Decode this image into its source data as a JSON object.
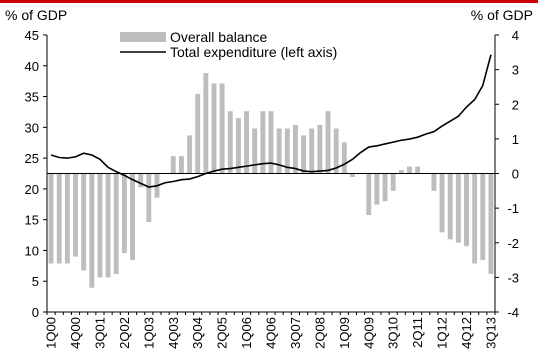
{
  "colors": {
    "accent_rule": "#cc0000",
    "bars": "#bdbdbd",
    "line": "#000000"
  },
  "chart_data": {
    "type": "bar+line",
    "title": "",
    "left_axis": {
      "label": "% of GDP",
      "range": [
        0,
        45
      ],
      "ticks": [
        0,
        5,
        10,
        15,
        20,
        25,
        30,
        35,
        40,
        45
      ]
    },
    "right_axis": {
      "label": "% of GDP",
      "range": [
        -4,
        4
      ],
      "ticks": [
        -4,
        -3,
        -2,
        -1,
        0,
        1,
        2,
        3,
        4
      ]
    },
    "x_tick_labels": [
      "1Q00",
      "4Q00",
      "3Q01",
      "2Q02",
      "1Q03",
      "4Q03",
      "3Q04",
      "2Q05",
      "1Q06",
      "4Q06",
      "3Q07",
      "2Q08",
      "1Q09",
      "4Q09",
      "3Q10",
      "2Q11",
      "1Q12",
      "4Q12",
      "3Q13"
    ],
    "quarters": [
      "1Q00",
      "2Q00",
      "3Q00",
      "4Q00",
      "1Q01",
      "2Q01",
      "3Q01",
      "4Q01",
      "1Q02",
      "2Q02",
      "3Q02",
      "4Q02",
      "1Q03",
      "2Q03",
      "3Q03",
      "4Q03",
      "1Q04",
      "2Q04",
      "3Q04",
      "4Q04",
      "1Q05",
      "2Q05",
      "3Q05",
      "4Q05",
      "1Q06",
      "2Q06",
      "3Q06",
      "4Q06",
      "1Q07",
      "2Q07",
      "3Q07",
      "4Q07",
      "1Q08",
      "2Q08",
      "3Q08",
      "4Q08",
      "1Q09",
      "2Q09",
      "3Q09",
      "4Q09",
      "1Q10",
      "2Q10",
      "3Q10",
      "4Q10",
      "1Q11",
      "2Q11",
      "3Q11",
      "4Q11",
      "1Q12",
      "2Q12",
      "3Q12",
      "4Q12",
      "1Q13",
      "2Q13",
      "3Q13"
    ],
    "series": [
      {
        "name": "Overall balance",
        "type": "bar",
        "axis": "right",
        "values": [
          -2.6,
          -2.6,
          -2.6,
          -2.4,
          -2.8,
          -3.3,
          -3.0,
          -3.0,
          -2.9,
          -2.3,
          -2.5,
          -0.4,
          -1.4,
          -0.7,
          0.0,
          0.5,
          0.5,
          1.1,
          2.3,
          2.9,
          2.6,
          2.6,
          1.8,
          1.6,
          1.8,
          1.3,
          1.8,
          1.8,
          1.3,
          1.3,
          1.4,
          1.1,
          1.3,
          1.4,
          1.8,
          1.3,
          0.9,
          -0.1,
          0.0,
          -1.2,
          -0.9,
          -0.8,
          -0.5,
          0.1,
          0.2,
          0.2,
          0.0,
          -0.5,
          -1.7,
          -1.9,
          -2.0,
          -2.1,
          -2.6,
          -2.5,
          -2.9
        ]
      },
      {
        "name": "Total expenditure (left axis)",
        "type": "line",
        "axis": "left",
        "values": [
          25.5,
          25.1,
          25.0,
          25.2,
          25.8,
          25.5,
          24.8,
          23.5,
          22.8,
          22.2,
          21.5,
          20.9,
          20.3,
          20.5,
          21.0,
          21.2,
          21.5,
          21.6,
          22.0,
          22.5,
          22.9,
          23.2,
          23.3,
          23.5,
          23.7,
          23.9,
          24.1,
          24.2,
          23.9,
          23.5,
          23.3,
          22.9,
          22.8,
          22.9,
          23.0,
          23.4,
          24.0,
          24.8,
          25.9,
          26.8,
          27.0,
          27.3,
          27.6,
          27.9,
          28.1,
          28.4,
          28.9,
          29.3,
          30.2,
          31.0,
          31.8,
          33.3,
          34.5,
          36.8,
          41.8
        ]
      }
    ],
    "legend": {
      "placement": "top-center",
      "items": [
        "Overall balance",
        "Total expenditure (left axis)"
      ]
    },
    "grid": false
  }
}
